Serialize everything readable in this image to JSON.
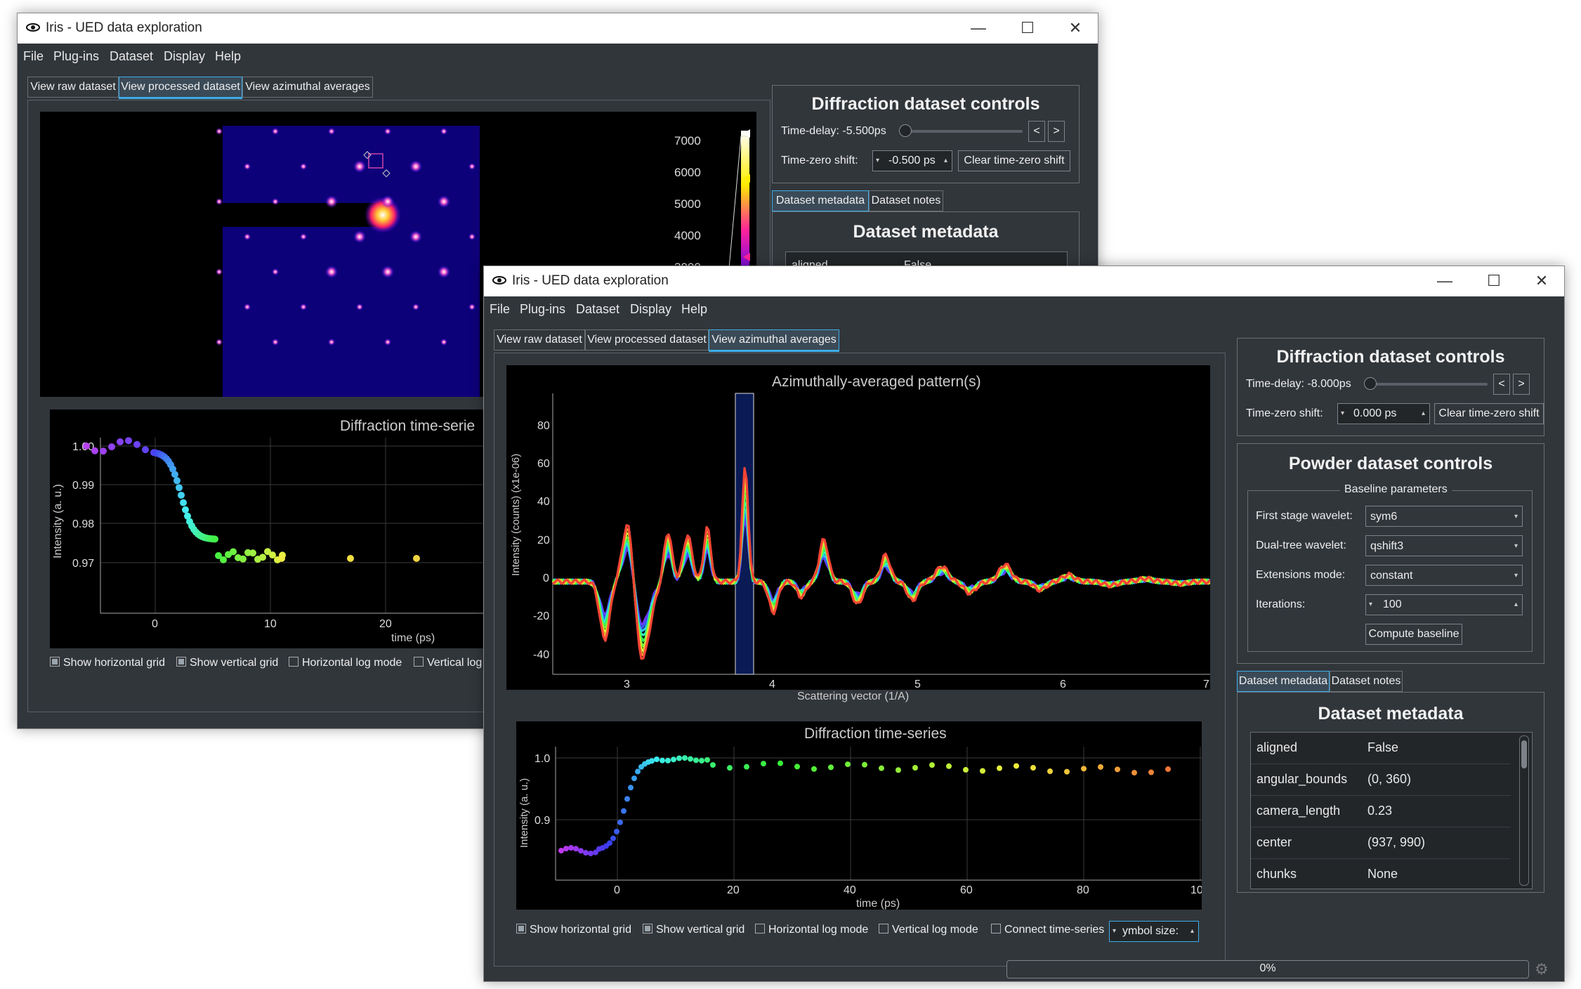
{
  "back_window": {
    "title": "Iris - UED data exploration",
    "menu": [
      "File",
      "Plug-ins",
      "Dataset",
      "Display",
      "Help"
    ],
    "tabs": [
      "View raw dataset",
      "View processed dataset",
      "View azimuthal averages"
    ],
    "active_tab": "View processed dataset",
    "colorbar_ticks": [
      "7000",
      "6000",
      "5000",
      "4000",
      "3000"
    ],
    "timeseries": {
      "title": "Diffraction time-serie",
      "ylabel": "Intensity (a. u.)",
      "xlabel": "time (ps)",
      "yticks": [
        "1.00",
        "0.99",
        "0.98",
        "0.97"
      ],
      "xticks": [
        "0",
        "10",
        "20"
      ]
    },
    "checkboxes": [
      {
        "label": "Show horizontal grid",
        "checked": true
      },
      {
        "label": "Show vertical grid",
        "checked": true
      },
      {
        "label": "Horizontal log mode",
        "checked": false
      },
      {
        "label": "Vertical log",
        "checked": false
      }
    ],
    "controls": {
      "title": "Diffraction dataset controls",
      "time_delay_label": "Time-delay: -5.500ps",
      "prev": "<",
      "next": ">",
      "time_zero_label": "Time-zero shift:",
      "time_zero_value": "-0.500 ps",
      "clear_button": "Clear time-zero shift"
    },
    "meta_tabs": [
      "Dataset metadata",
      "Dataset notes"
    ],
    "meta_title": "Dataset metadata",
    "meta_partial": [
      "aligned",
      "False"
    ]
  },
  "front_window": {
    "title": "Iris - UED data exploration",
    "menu": [
      "File",
      "Plug-ins",
      "Dataset",
      "Display",
      "Help"
    ],
    "tabs": [
      "View raw dataset",
      "View processed dataset",
      "View azimuthal averages"
    ],
    "active_tab": "View azimuthal averages",
    "azimuthal_plot": {
      "title": "Azimuthally-averaged pattern(s)",
      "ylabel": "Intensity (counts) (x1e-06)",
      "xlabel": "Scattering vector (1/A)",
      "yticks": [
        "80",
        "60",
        "40",
        "20",
        "0",
        "-20",
        "-40"
      ],
      "xticks": [
        "3",
        "4",
        "5",
        "6",
        "7"
      ]
    },
    "timeseries": {
      "title": "Diffraction time-series",
      "ylabel": "Intensity (a. u.)",
      "xlabel": "time (ps)",
      "yticks": [
        "1.0",
        "0.9"
      ],
      "xticks": [
        "0",
        "20",
        "40",
        "60",
        "80",
        "10"
      ]
    },
    "checkboxes": [
      {
        "label": "Show horizontal grid",
        "checked": true
      },
      {
        "label": "Show vertical grid",
        "checked": true
      },
      {
        "label": "Horizontal log mode",
        "checked": false
      },
      {
        "label": "Vertical log mode",
        "checked": false
      },
      {
        "label": "Connect time-series",
        "checked": false
      }
    ],
    "symbol_size": "ymbol size:",
    "controls": {
      "title": "Diffraction dataset controls",
      "time_delay_label": "Time-delay: -8.000ps",
      "prev": "<",
      "next": ">",
      "time_zero_label": "Time-zero shift:",
      "time_zero_value": "0.000 ps",
      "clear_button": "Clear time-zero shift"
    },
    "powder": {
      "title": "Powder dataset controls",
      "group": "Baseline parameters",
      "first_stage_label": "First stage wavelet:",
      "first_stage_value": "sym6",
      "dual_tree_label": "Dual-tree wavelet:",
      "dual_tree_value": "qshift3",
      "extensions_label": "Extensions mode:",
      "extensions_value": "constant",
      "iterations_label": "Iterations:",
      "iterations_value": "100",
      "compute_button": "Compute baseline"
    },
    "meta_tabs": [
      "Dataset metadata",
      "Dataset notes"
    ],
    "meta_title": "Dataset metadata",
    "metadata": [
      [
        "aligned",
        "False"
      ],
      [
        "angular_bounds",
        "(0, 360)"
      ],
      [
        "camera_length",
        "0.23"
      ],
      [
        "center",
        "(937, 990)"
      ],
      [
        "chunks",
        "None"
      ]
    ],
    "progress": "0%",
    "progress_value": 0
  }
}
